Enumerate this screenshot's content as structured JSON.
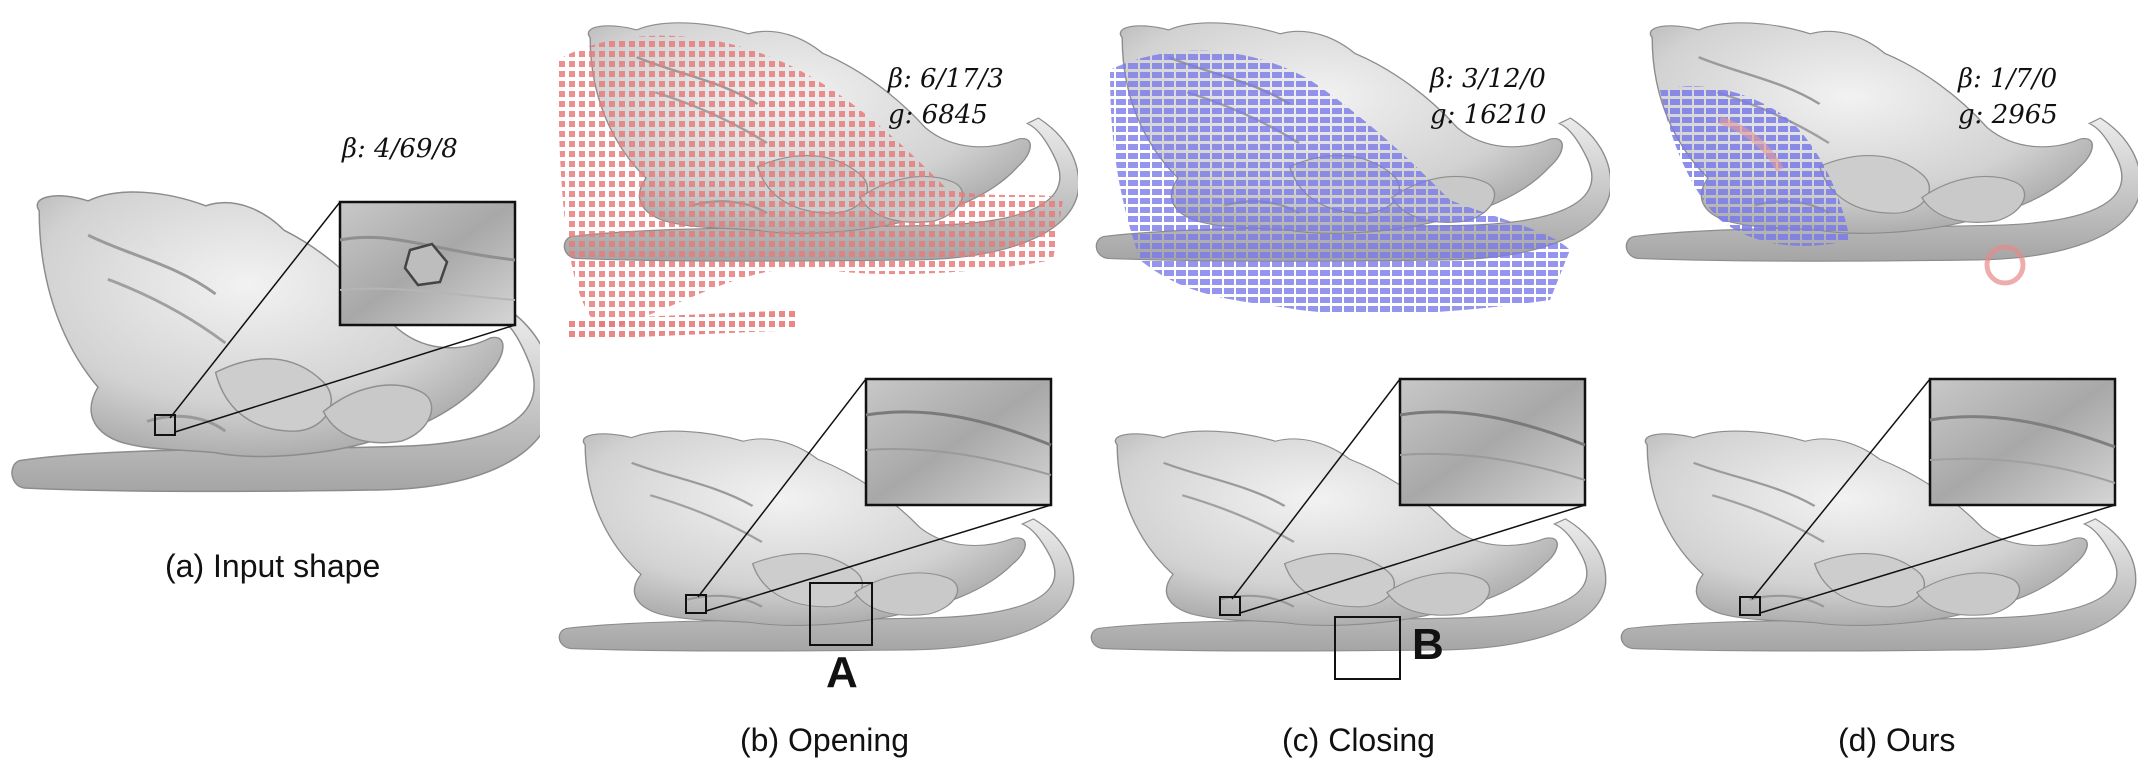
{
  "panels": [
    {
      "id": "a",
      "caption": "(a) Input shape",
      "beta": "β: 4/69/8"
    },
    {
      "id": "b",
      "caption": "(b) Opening",
      "beta": "β: 6/17/3",
      "g": "g: 6845",
      "marker": "A"
    },
    {
      "id": "c",
      "caption": "(c) Closing",
      "beta": "β: 3/12/0",
      "g": "g: 16210",
      "marker": "B"
    },
    {
      "id": "d",
      "caption": "(d) Ours",
      "beta": "β: 1/7/0",
      "g": "g: 2965"
    }
  ],
  "colors": {
    "shape": "#d6d6d6",
    "opening_overlay": "#ee8a8a",
    "closing_overlay": "#8a8aee",
    "ours_overlay": "#8a8aee"
  }
}
